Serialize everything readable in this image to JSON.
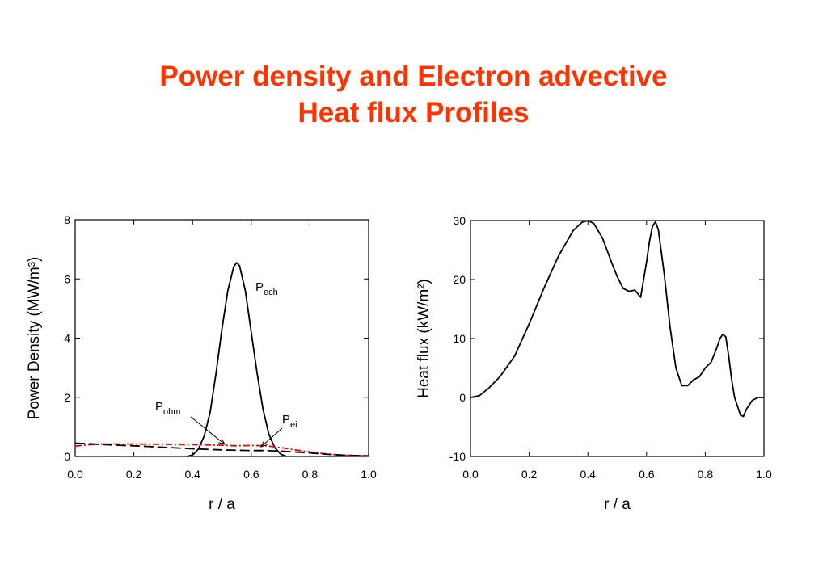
{
  "slide": {
    "title_line1": "Power density and Electron advective",
    "title_line2": "Heat flux Profiles"
  },
  "chart_data": [
    {
      "type": "line",
      "xlabel": "r / a",
      "ylabel": "Power Density  (MW/m³)",
      "xlim": [
        0.0,
        1.0
      ],
      "ylim": [
        0,
        8
      ],
      "x_ticks": [
        "0.0",
        "0.2",
        "0.4",
        "0.6",
        "0.8",
        "1.0"
      ],
      "y_ticks": [
        "0",
        "2",
        "4",
        "6",
        "8"
      ],
      "grid": false,
      "annotations": [
        {
          "base": "P",
          "sub": "ech",
          "target": "P_ech"
        },
        {
          "base": "P",
          "sub": "ohm",
          "target": "P_ohm"
        },
        {
          "base": "P",
          "sub": "ei",
          "target": "P_ei"
        }
      ],
      "series": [
        {
          "key": "P_ech",
          "color": "#000000",
          "style": "solid",
          "x": [
            0.38,
            0.4,
            0.42,
            0.44,
            0.46,
            0.48,
            0.5,
            0.52,
            0.54,
            0.55,
            0.56,
            0.58,
            0.6,
            0.62,
            0.64,
            0.66,
            0.68,
            0.7,
            0.72
          ],
          "y": [
            0.0,
            0.05,
            0.25,
            0.7,
            1.5,
            2.8,
            4.3,
            5.6,
            6.4,
            6.55,
            6.45,
            5.6,
            4.2,
            2.8,
            1.6,
            0.75,
            0.3,
            0.08,
            0.0
          ]
        },
        {
          "key": "P_ohm",
          "color": "#ff0000",
          "style": "dashdot",
          "x": [
            0.0,
            0.05,
            0.1,
            0.2,
            0.3,
            0.4,
            0.5,
            0.55,
            0.6,
            0.65,
            0.7,
            0.75,
            0.8,
            0.85,
            0.9,
            0.95,
            1.0
          ],
          "y": [
            0.35,
            0.4,
            0.42,
            0.42,
            0.41,
            0.4,
            0.38,
            0.36,
            0.37,
            0.36,
            0.3,
            0.22,
            0.15,
            0.09,
            0.05,
            0.03,
            0.02
          ]
        },
        {
          "key": "P_ei",
          "color": "#000000",
          "style": "dashed",
          "x": [
            0.0,
            0.05,
            0.1,
            0.2,
            0.3,
            0.4,
            0.5,
            0.6,
            0.65,
            0.7,
            0.75,
            0.8,
            0.85,
            0.9,
            0.95,
            1.0
          ],
          "y": [
            0.45,
            0.43,
            0.4,
            0.36,
            0.31,
            0.26,
            0.22,
            0.2,
            0.2,
            0.18,
            0.15,
            0.12,
            0.08,
            0.05,
            0.03,
            0.02
          ]
        }
      ]
    },
    {
      "type": "line",
      "xlabel": "r / a",
      "ylabel": "Heat flux (kW/m²)",
      "xlim": [
        0.0,
        1.0
      ],
      "ylim": [
        -10,
        30
      ],
      "x_ticks": [
        "0.0",
        "0.2",
        "0.4",
        "0.6",
        "0.8",
        "1.0"
      ],
      "y_ticks": [
        "-10",
        "0",
        "10",
        "20",
        "30"
      ],
      "grid": false,
      "series": [
        {
          "key": "heat_flux",
          "color": "#000000",
          "style": "solid",
          "x": [
            0.0,
            0.03,
            0.06,
            0.1,
            0.15,
            0.2,
            0.25,
            0.3,
            0.35,
            0.38,
            0.4,
            0.42,
            0.45,
            0.48,
            0.5,
            0.52,
            0.54,
            0.56,
            0.58,
            0.6,
            0.61,
            0.62,
            0.63,
            0.64,
            0.66,
            0.68,
            0.7,
            0.72,
            0.74,
            0.76,
            0.78,
            0.8,
            0.82,
            0.84,
            0.85,
            0.86,
            0.87,
            0.88,
            0.89,
            0.9,
            0.92,
            0.93,
            0.94,
            0.96,
            0.98,
            1.0
          ],
          "y": [
            0.0,
            0.3,
            1.5,
            3.5,
            7.0,
            12.5,
            18.5,
            24.0,
            28.3,
            29.7,
            30.0,
            29.5,
            27.0,
            23.0,
            20.5,
            18.5,
            18.0,
            18.2,
            17.0,
            23.0,
            26.5,
            29.0,
            29.8,
            28.5,
            21.0,
            12.0,
            5.0,
            2.0,
            2.0,
            3.0,
            3.5,
            5.0,
            6.0,
            8.5,
            10.0,
            10.7,
            10.3,
            7.0,
            3.0,
            0.0,
            -3.0,
            -3.2,
            -2.0,
            -0.5,
            0.0,
            0.0
          ]
        }
      ]
    }
  ]
}
